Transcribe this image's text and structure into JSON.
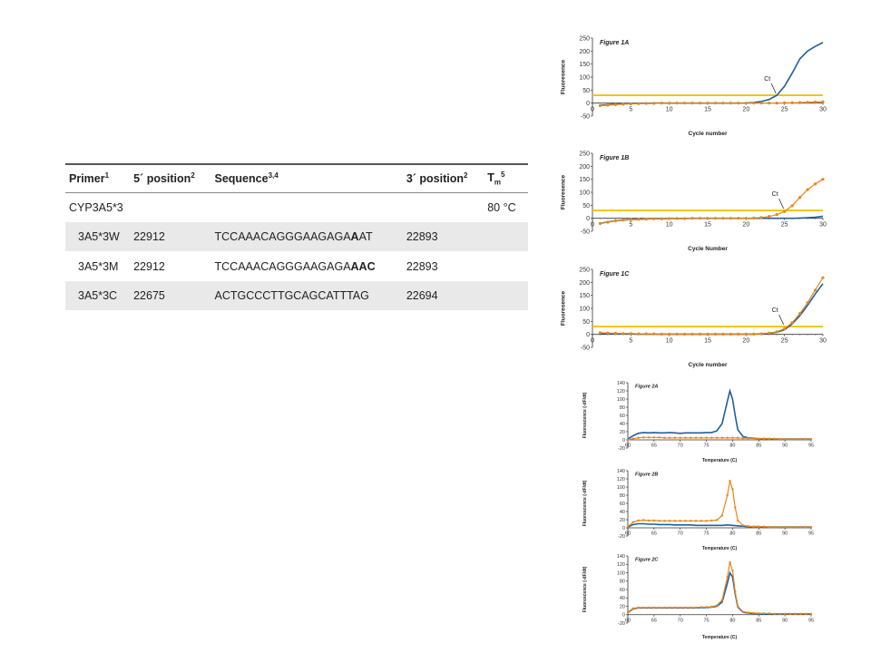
{
  "table": {
    "headers": {
      "primer": "Primer",
      "primer_sup": "1",
      "five_pos": "5´ position",
      "five_pos_sup": "2",
      "sequence": "Sequence",
      "sequence_sup": "3,4",
      "three_pos": "3´ position",
      "three_pos_sup": "2",
      "tm": "T",
      "tm_sub": "m",
      "tm_sup": "5"
    },
    "group": {
      "name": "CYP3A5*3",
      "tm": "80 °C"
    },
    "rows": [
      {
        "primer": "3A5*3W",
        "five_pos": "22912",
        "seq_plain": "TCCAAACAGGGAAGAGA",
        "seq_bold_a": "A",
        "seq_mid": "A",
        "seq_bold_b": "",
        "seq_tail": "T",
        "three_pos": "22893"
      },
      {
        "primer": "3A5*3M",
        "five_pos": "22912",
        "seq_plain": "TCCAAACAGGGAAGAGA",
        "seq_bold_a": "AAC",
        "seq_mid": "",
        "seq_bold_b": "",
        "seq_tail": "",
        "three_pos": "22893"
      },
      {
        "primer": "3A5*3C",
        "five_pos": "22675",
        "seq_plain": "ACTGCCCTTGCAGCATTTAG",
        "seq_bold_a": "",
        "seq_mid": "",
        "seq_bold_b": "",
        "seq_tail": "",
        "three_pos": "22694"
      }
    ]
  },
  "chart_data": [
    {
      "id": "fig1a",
      "type": "line",
      "title": "Figure 1A",
      "xlabel": "Cycle number",
      "ylabel": "Fluoresence",
      "xlim": [
        0,
        30
      ],
      "ylim": [
        -50,
        250
      ],
      "xticks": [
        0,
        5,
        10,
        15,
        20,
        25,
        30
      ],
      "yticks": [
        -50,
        0,
        50,
        100,
        150,
        200,
        250
      ],
      "threshold": 30,
      "ct_label": "Ct",
      "ct_x": 24,
      "series": [
        {
          "color": "#1f5fa0",
          "markers": false,
          "x": [
            1,
            2,
            3,
            4,
            5,
            6,
            7,
            8,
            9,
            10,
            11,
            12,
            13,
            14,
            15,
            16,
            17,
            18,
            19,
            20,
            21,
            22,
            23,
            24,
            25,
            26,
            27,
            28,
            29,
            30
          ],
          "y": [
            -8,
            -6,
            -4,
            -3,
            -2,
            -1,
            -1,
            0,
            0,
            0,
            0,
            0,
            0,
            0,
            0,
            0,
            0,
            0,
            0,
            0,
            2,
            6,
            14,
            30,
            65,
            115,
            170,
            200,
            218,
            233
          ]
        },
        {
          "color": "#e8861a",
          "markers": true,
          "x": [
            1,
            2,
            3,
            4,
            5,
            6,
            7,
            8,
            9,
            10,
            11,
            12,
            13,
            14,
            15,
            16,
            17,
            18,
            19,
            20,
            21,
            22,
            23,
            24,
            25,
            26,
            27,
            28,
            29,
            30
          ],
          "y": [
            -10,
            -8,
            -6,
            -4,
            -3,
            -2,
            -1,
            -1,
            0,
            0,
            0,
            0,
            0,
            0,
            0,
            0,
            0,
            0,
            0,
            0,
            0,
            0,
            0,
            0,
            1,
            1,
            2,
            3,
            4,
            5
          ]
        }
      ]
    },
    {
      "id": "fig1b",
      "type": "line",
      "title": "Figure 1B",
      "xlabel": "Cycle Number",
      "ylabel": "Fluoresence",
      "xlim": [
        0,
        30
      ],
      "ylim": [
        -50,
        250
      ],
      "xticks": [
        0,
        5,
        10,
        15,
        20,
        25,
        30
      ],
      "yticks": [
        -50,
        0,
        50,
        100,
        150,
        200,
        250
      ],
      "threshold": 30,
      "ct_label": "Ct",
      "ct_x": 25,
      "series": [
        {
          "color": "#1f5fa0",
          "markers": false,
          "x": [
            1,
            2,
            3,
            4,
            5,
            6,
            7,
            8,
            9,
            10,
            11,
            12,
            13,
            14,
            15,
            16,
            17,
            18,
            19,
            20,
            21,
            22,
            23,
            24,
            25,
            26,
            27,
            28,
            29,
            30
          ],
          "y": [
            -20,
            -14,
            -10,
            -7,
            -5,
            -4,
            -3,
            -2,
            -2,
            -1,
            -1,
            -1,
            0,
            0,
            0,
            0,
            0,
            0,
            0,
            0,
            0,
            0,
            0,
            0,
            0,
            0,
            1,
            2,
            4,
            8
          ]
        },
        {
          "color": "#e8861a",
          "markers": true,
          "x": [
            1,
            2,
            3,
            4,
            5,
            6,
            7,
            8,
            9,
            10,
            11,
            12,
            13,
            14,
            15,
            16,
            17,
            18,
            19,
            20,
            21,
            22,
            23,
            24,
            25,
            26,
            27,
            28,
            29,
            30
          ],
          "y": [
            -20,
            -15,
            -10,
            -7,
            -5,
            -4,
            -3,
            -2,
            -2,
            -1,
            -1,
            -1,
            0,
            0,
            0,
            0,
            0,
            0,
            0,
            0,
            1,
            3,
            7,
            14,
            26,
            48,
            80,
            110,
            132,
            150
          ]
        }
      ]
    },
    {
      "id": "fig1c",
      "type": "line",
      "title": "Figure 1C",
      "xlabel": "Cycle number",
      "ylabel": "Fluoresence",
      "xlim": [
        0,
        30
      ],
      "ylim": [
        -50,
        250
      ],
      "xticks": [
        0,
        5,
        10,
        15,
        20,
        25,
        30
      ],
      "yticks": [
        -50,
        0,
        50,
        100,
        150,
        200,
        250
      ],
      "threshold": 30,
      "ct_label": "Ct",
      "ct_x": 25,
      "series": [
        {
          "color": "#1f5fa0",
          "markers": false,
          "x": [
            1,
            2,
            3,
            4,
            5,
            6,
            7,
            8,
            9,
            10,
            11,
            12,
            13,
            14,
            15,
            16,
            17,
            18,
            19,
            20,
            21,
            22,
            23,
            24,
            25,
            26,
            27,
            28,
            29,
            30
          ],
          "y": [
            3,
            3,
            2,
            2,
            2,
            1,
            1,
            1,
            1,
            1,
            1,
            1,
            1,
            1,
            1,
            1,
            1,
            1,
            1,
            1,
            1,
            2,
            4,
            8,
            18,
            40,
            72,
            112,
            155,
            195
          ]
        },
        {
          "color": "#e8861a",
          "markers": true,
          "x": [
            1,
            2,
            3,
            4,
            5,
            6,
            7,
            8,
            9,
            10,
            11,
            12,
            13,
            14,
            15,
            16,
            17,
            18,
            19,
            20,
            21,
            22,
            23,
            24,
            25,
            26,
            27,
            28,
            29,
            30
          ],
          "y": [
            6,
            5,
            4,
            3,
            3,
            2,
            2,
            2,
            1,
            1,
            1,
            1,
            1,
            1,
            1,
            1,
            1,
            1,
            1,
            1,
            1,
            2,
            5,
            10,
            22,
            45,
            80,
            122,
            170,
            218
          ]
        }
      ]
    },
    {
      "id": "fig2a",
      "type": "line",
      "title": "Figure 2A",
      "xlabel": "Temperature (C)",
      "ylabel": "Fluorescence (-dF/dt)",
      "xlim": [
        60,
        95
      ],
      "ylim": [
        -20,
        140
      ],
      "xticks": [
        60,
        65,
        70,
        75,
        80,
        85,
        90,
        95
      ],
      "yticks": [
        -20,
        0,
        20,
        40,
        60,
        80,
        100,
        120,
        140
      ],
      "threshold": null,
      "series": [
        {
          "color": "#1f5fa0",
          "markers": false,
          "x": [
            60,
            61,
            62,
            63,
            64,
            65,
            66,
            67,
            68,
            69,
            70,
            71,
            72,
            73,
            74,
            75,
            76,
            77,
            78,
            79,
            79.5,
            80,
            80.5,
            81,
            82,
            83,
            84,
            85,
            86,
            87,
            88,
            89,
            90,
            91,
            92,
            93,
            94,
            95
          ],
          "y": [
            2,
            10,
            16,
            18,
            17,
            18,
            17,
            17,
            18,
            17,
            16,
            17,
            17,
            17,
            17,
            18,
            18,
            22,
            40,
            95,
            120,
            100,
            60,
            25,
            8,
            5,
            4,
            3,
            3,
            3,
            2,
            2,
            2,
            2,
            2,
            2,
            2,
            2
          ]
        },
        {
          "color": "#e8861a",
          "markers": true,
          "x": [
            60,
            61,
            62,
            63,
            64,
            65,
            66,
            67,
            68,
            69,
            70,
            71,
            72,
            73,
            74,
            75,
            76,
            77,
            78,
            79,
            80,
            81,
            82,
            83,
            84,
            85,
            86,
            87,
            88,
            89,
            90,
            91,
            92,
            93,
            94,
            95
          ],
          "y": [
            0,
            3,
            5,
            6,
            6,
            6,
            6,
            5,
            5,
            5,
            5,
            5,
            5,
            5,
            5,
            5,
            5,
            5,
            5,
            5,
            5,
            5,
            4,
            4,
            4,
            3,
            3,
            3,
            3,
            2,
            2,
            2,
            2,
            2,
            2,
            2
          ]
        }
      ]
    },
    {
      "id": "fig2b",
      "type": "line",
      "title": "Figure 2B",
      "xlabel": "Temperature (C)",
      "ylabel": "Fluorescence (-dF/dt)",
      "xlim": [
        60,
        95
      ],
      "ylim": [
        -20,
        140
      ],
      "xticks": [
        60,
        65,
        70,
        75,
        80,
        85,
        90,
        95
      ],
      "yticks": [
        -20,
        0,
        20,
        40,
        60,
        80,
        100,
        120,
        140
      ],
      "threshold": null,
      "series": [
        {
          "color": "#1f5fa0",
          "markers": false,
          "x": [
            60,
            61,
            62,
            63,
            64,
            65,
            66,
            67,
            68,
            69,
            70,
            71,
            72,
            73,
            74,
            75,
            76,
            77,
            78,
            79,
            80,
            81,
            82,
            83,
            84,
            85,
            86,
            87,
            88,
            89,
            90,
            91,
            92,
            93,
            94,
            95
          ],
          "y": [
            2,
            8,
            10,
            10,
            9,
            9,
            8,
            8,
            8,
            7,
            7,
            7,
            7,
            6,
            6,
            6,
            6,
            6,
            6,
            7,
            6,
            5,
            4,
            3,
            3,
            3,
            2,
            2,
            2,
            2,
            2,
            2,
            2,
            2,
            2,
            2
          ]
        },
        {
          "color": "#e8861a",
          "markers": true,
          "x": [
            60,
            61,
            62,
            63,
            64,
            65,
            66,
            67,
            68,
            69,
            70,
            71,
            72,
            73,
            74,
            75,
            76,
            77,
            78,
            79,
            79.5,
            80,
            80.5,
            81,
            82,
            83,
            84,
            85,
            86,
            87,
            88,
            89,
            90,
            91,
            92,
            93,
            94,
            95
          ],
          "y": [
            3,
            14,
            18,
            19,
            18,
            18,
            17,
            17,
            17,
            17,
            17,
            17,
            17,
            17,
            17,
            17,
            18,
            19,
            30,
            80,
            115,
            95,
            50,
            18,
            6,
            4,
            3,
            3,
            3,
            2,
            2,
            2,
            2,
            2,
            2,
            2,
            2,
            2
          ]
        }
      ]
    },
    {
      "id": "fig2c",
      "type": "line",
      "title": "Figure 2C",
      "xlabel": "Temperature (C)",
      "ylabel": "Fluorescence (-dF/dt)",
      "xlim": [
        60,
        95
      ],
      "ylim": [
        -20,
        140
      ],
      "xticks": [
        60,
        65,
        70,
        75,
        80,
        85,
        90,
        95
      ],
      "yticks": [
        -20,
        0,
        20,
        40,
        60,
        80,
        100,
        120,
        140
      ],
      "threshold": null,
      "series": [
        {
          "color": "#1f5fa0",
          "markers": false,
          "x": [
            60,
            61,
            62,
            63,
            64,
            65,
            66,
            67,
            68,
            69,
            70,
            71,
            72,
            73,
            74,
            75,
            76,
            77,
            78,
            79,
            79.5,
            80,
            80.5,
            81,
            82,
            83,
            84,
            85,
            86,
            87,
            88,
            89,
            90,
            91,
            92,
            93,
            94,
            95
          ],
          "y": [
            5,
            14,
            16,
            16,
            16,
            16,
            16,
            16,
            16,
            16,
            16,
            16,
            16,
            16,
            17,
            17,
            18,
            20,
            30,
            75,
            100,
            90,
            50,
            18,
            6,
            4,
            3,
            3,
            2,
            2,
            2,
            2,
            2,
            2,
            2,
            2,
            2,
            2
          ]
        },
        {
          "color": "#e8861a",
          "markers": true,
          "x": [
            60,
            61,
            62,
            63,
            64,
            65,
            66,
            67,
            68,
            69,
            70,
            71,
            72,
            73,
            74,
            75,
            76,
            77,
            78,
            79,
            79.5,
            80,
            80.5,
            81,
            82,
            83,
            84,
            85,
            86,
            87,
            88,
            89,
            90,
            91,
            92,
            93,
            94,
            95
          ],
          "y": [
            6,
            15,
            17,
            17,
            17,
            17,
            17,
            17,
            17,
            17,
            17,
            17,
            17,
            17,
            18,
            18,
            19,
            22,
            35,
            90,
            125,
            105,
            55,
            20,
            7,
            5,
            4,
            3,
            3,
            3,
            2,
            2,
            2,
            2,
            2,
            2,
            2,
            2
          ]
        }
      ]
    }
  ]
}
